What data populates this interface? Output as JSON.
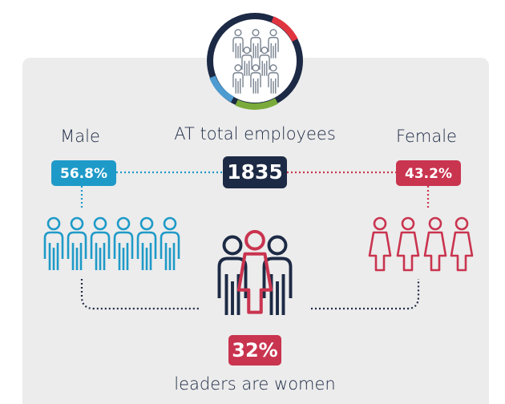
{
  "male": {
    "label": "Male",
    "share": "56.8%"
  },
  "total": {
    "label": "AT total employees",
    "count": "1835"
  },
  "female": {
    "label": "Female",
    "share": "43.2%"
  },
  "leaders": {
    "share": "32%",
    "label": "leaders are women"
  }
}
